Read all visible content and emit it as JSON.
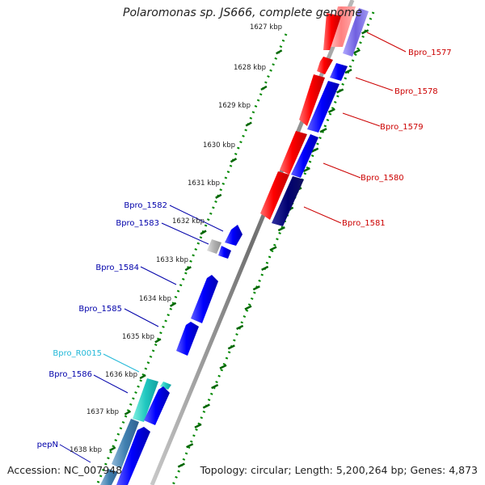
{
  "title": "Polaromonas sp. JS666, complete genome",
  "footer": {
    "accession": "Accession: NC_007948",
    "topology": "Topology: circular; Length: 5,200,264 bp; Genes: 4,873"
  },
  "colors": {
    "forward_strand": "#ff0000",
    "reverse_strand": "#0000ff",
    "rna_gene": "#20c8c8",
    "backbone": "#888888",
    "gc_ticks": "#008000",
    "label_forward": "#cc0000",
    "label_reverse": "#0000aa",
    "label_rna": "#22b8d8"
  },
  "kbp_labels": [
    "1627 kbp",
    "1628 kbp",
    "1629 kbp",
    "1630 kbp",
    "1631 kbp",
    "1632 kbp",
    "1633 kbp",
    "1634 kbp",
    "1635 kbp",
    "1636 kbp",
    "1637 kbp",
    "1638 kbp"
  ],
  "gene_labels_right": [
    "Bpro_1577",
    "Bpro_1578",
    "Bpro_1579",
    "Bpro_1580",
    "Bpro_1581"
  ],
  "gene_labels_left": [
    "Bpro_1582",
    "Bpro_1583",
    "Bpro_1584",
    "Bpro_1585",
    "Bpro_R0015",
    "Bpro_1586",
    "pepN"
  ]
}
